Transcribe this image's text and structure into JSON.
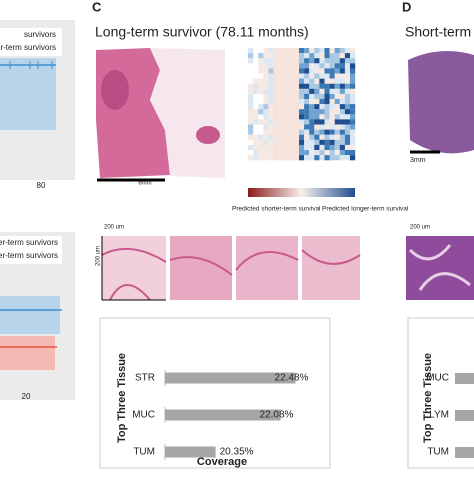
{
  "left_panel": {
    "legend_top": [
      "survivors",
      "nger-term survivors"
    ],
    "tick_top": "80",
    "legend_bottom": [
      "nger-term survivors",
      "rter-term survivors"
    ],
    "tick_bottom": "20"
  },
  "panel_c": {
    "letter": "C",
    "title": "Long-term survivor (78.11 months)",
    "scale_bar": "6mm",
    "colorbar_labels": [
      "Predicted shorter-term survival",
      "Predicted longer-term survival"
    ],
    "patch_scale": "200 um",
    "patch_scale_vertical": "200 um",
    "chart": {
      "type": "bar",
      "categories": [
        "STR",
        "MUC",
        "TUM"
      ],
      "values": [
        22.48,
        22.08,
        20.35
      ],
      "value_labels": [
        "22.48%",
        "22.08%",
        "20.35%"
      ],
      "xlim": [
        19,
        23
      ],
      "color": "#a6a6a6",
      "ylabel": "Top Three Tissue",
      "xlabel": "Coverage"
    }
  },
  "panel_d": {
    "letter": "D",
    "title": "Short-term",
    "scale_bar": "3mm",
    "patch_scale": "200 um",
    "chart": {
      "categories": [
        "MUC",
        "LYM",
        "TUM"
      ],
      "ylabel": "Top Three Tissue"
    }
  }
}
